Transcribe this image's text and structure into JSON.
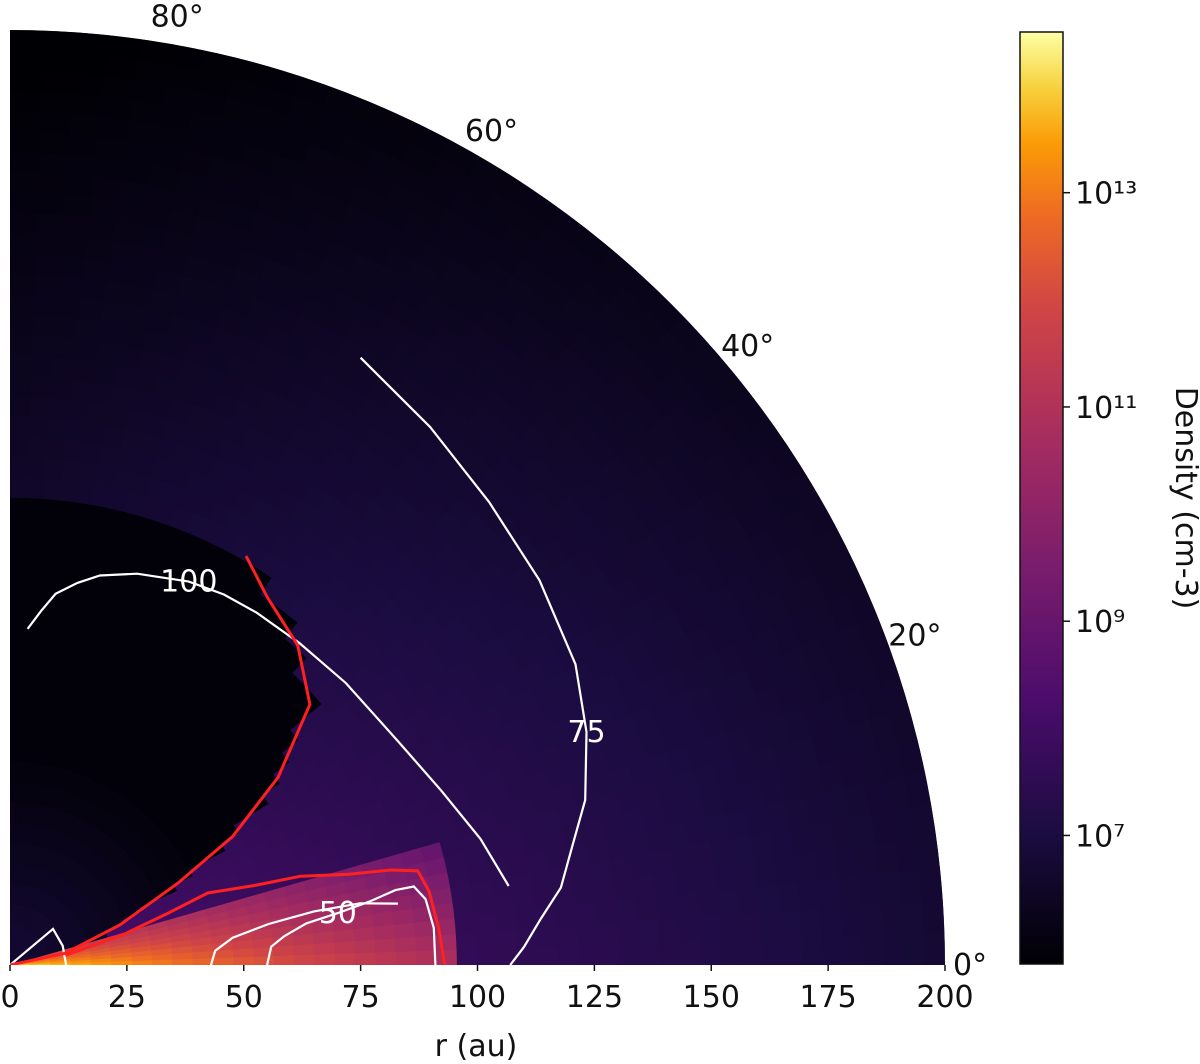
{
  "chart_data": {
    "type": "heatmap",
    "projection": "polar-quadrant",
    "title": "",
    "xlabel": "r (au)",
    "x_ticks": [
      "0",
      "25",
      "50",
      "75",
      "100",
      "125",
      "150",
      "175",
      "200"
    ],
    "x_tick_values": [
      0,
      25,
      50,
      75,
      100,
      125,
      150,
      175,
      200
    ],
    "r_range": [
      0,
      200
    ],
    "theta_range_deg": [
      0,
      90
    ],
    "angle_ticks": [
      {
        "deg": 0,
        "label": "0°"
      },
      {
        "deg": 20,
        "label": "20°"
      },
      {
        "deg": 40,
        "label": "40°"
      },
      {
        "deg": 60,
        "label": "60°"
      },
      {
        "deg": 80,
        "label": "80°"
      }
    ],
    "colorbar": {
      "label": "Density (cm-3)",
      "scale": "log",
      "colormap": "inferno",
      "range_log10": [
        5.8,
        14.5
      ],
      "ticks": [
        {
          "log10": 7,
          "label": "10⁷"
        },
        {
          "log10": 9,
          "label": "10⁹"
        },
        {
          "log10": 11,
          "label": "10¹¹"
        },
        {
          "log10": 13,
          "label": "10¹³"
        }
      ]
    },
    "temperature_contours": [
      {
        "level": "100",
        "label": "100",
        "color": "#ffffff",
        "points": [
          [
            72,
            87
          ],
          [
            76,
            85
          ],
          [
            80,
            83
          ],
          [
            83,
            80
          ],
          [
            85.5,
            77
          ],
          [
            88,
            72
          ],
          [
            90.5,
            65
          ],
          [
            91.5,
            60
          ],
          [
            92,
            55
          ],
          [
            92.6,
            48
          ],
          [
            93.8,
            40
          ],
          [
            95.8,
            30
          ],
          [
            99.5,
            22
          ],
          [
            104.2,
            15
          ],
          [
            108,
            9
          ]
        ]
      },
      {
        "level": "75",
        "label": "75",
        "color": "#ffffff",
        "points": [
          [
            150,
            60
          ],
          [
            146,
            52
          ],
          [
            142.5,
            44
          ],
          [
            140,
            36
          ],
          [
            137,
            28
          ],
          [
            133,
            22
          ],
          [
            128,
            16
          ],
          [
            123,
            12
          ],
          [
            119,
            8
          ],
          [
            114,
            5
          ],
          [
            110,
            2
          ],
          [
            107,
            0
          ]
        ]
      },
      {
        "level": "50",
        "label": "50",
        "color": "#ffffff",
        "points": [
          [
            55,
            0
          ],
          [
            56,
            4
          ],
          [
            59,
            6
          ],
          [
            64,
            8
          ],
          [
            71,
            9
          ],
          [
            78,
            10
          ],
          [
            84,
            11
          ],
          [
            88,
            11
          ],
          [
            90,
            9
          ],
          [
            91,
            5
          ],
          [
            91,
            0
          ]
        ]
      },
      {
        "level": "",
        "label": "",
        "color": "#ffffff",
        "points": [
          [
            43,
            0
          ],
          [
            44,
            4
          ],
          [
            48,
            7
          ],
          [
            56,
            9
          ],
          [
            66,
            10
          ],
          [
            76,
            10
          ],
          [
            84,
            9
          ]
        ]
      },
      {
        "level": "",
        "label": "",
        "color": "#ffffff",
        "points": [
          [
            0,
            90
          ],
          [
            12,
            40
          ],
          [
            12,
            20
          ],
          [
            12,
            0
          ]
        ]
      }
    ],
    "region_boundaries": [
      {
        "name": "",
        "color": "#ff2020",
        "points": [
          [
            0,
            0
          ],
          [
            12,
            12
          ],
          [
            25,
            20
          ],
          [
            40,
            26
          ],
          [
            55,
            30
          ],
          [
            70,
            35
          ],
          [
            85,
            41
          ],
          [
            92,
            48
          ],
          [
            96,
            55
          ],
          [
            101,
            60
          ]
        ]
      },
      {
        "name": "",
        "color": "#ff2020",
        "points": [
          [
            12,
            10
          ],
          [
            25,
            15
          ],
          [
            35,
            18
          ],
          [
            45,
            20
          ],
          [
            55,
            18
          ],
          [
            65,
            17
          ],
          [
            75,
            15
          ],
          [
            84,
            14
          ],
          [
            89.5,
            13
          ],
          [
            91,
            10
          ],
          [
            92,
            5
          ],
          [
            93,
            0
          ]
        ]
      }
    ],
    "annotations": []
  },
  "colors": {
    "background": "#ffffff",
    "text": "#111111",
    "contour": "#ffffff",
    "boundary": "#ff2020"
  }
}
